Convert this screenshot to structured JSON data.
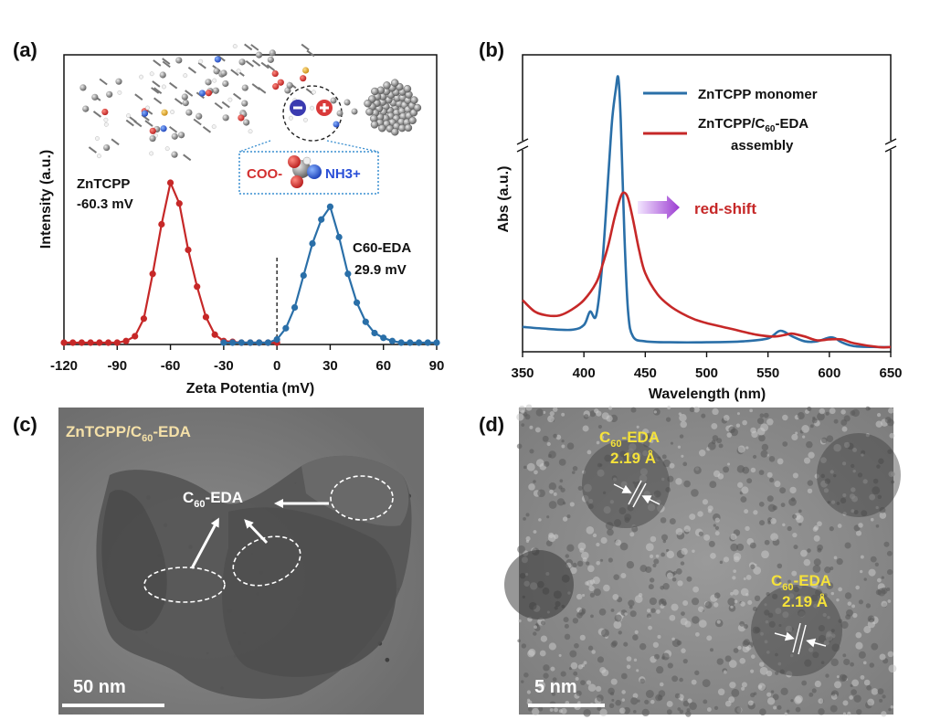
{
  "panels": {
    "a": {
      "label": "(a)"
    },
    "b": {
      "label": "(b)"
    },
    "c": {
      "label": "(c)",
      "title": "ZnTCPP/C60-EDA",
      "scalebar": "50 nm",
      "arrow_label": "C60-EDA"
    },
    "d": {
      "label": "(d)",
      "scalebar": "5 nm",
      "annotation_name": "C60-EDA",
      "annotation_value": "2.19 Å"
    }
  },
  "chart_data": [
    {
      "type": "line",
      "panel": "a",
      "xlabel": "Zeta Potentia (mV)",
      "ylabel": "Intensity (a.u.)",
      "xlim": [
        -120,
        90
      ],
      "xticks": [
        -120,
        -90,
        -60,
        -30,
        0,
        30,
        60,
        90
      ],
      "ylim": [
        0,
        1
      ],
      "dashed_reference_x": 0,
      "series": [
        {
          "name": "ZnTCPP",
          "color": "#c62828",
          "x": [
            -120,
            -115,
            -110,
            -105,
            -100,
            -95,
            -90,
            -85,
            -80,
            -75,
            -70,
            -65,
            -60,
            -55,
            -50,
            -45,
            -40,
            -35,
            -30,
            -25,
            -20,
            -15,
            -10,
            -5,
            0
          ],
          "y": [
            0,
            0,
            0,
            0,
            0,
            0,
            0,
            0.01,
            0.04,
            0.15,
            0.43,
            0.74,
            1.0,
            0.87,
            0.58,
            0.35,
            0.16,
            0.05,
            0.01,
            0.005,
            0,
            0,
            0,
            0,
            0
          ]
        },
        {
          "name": "C60-EDA",
          "color": "#2a6fa8",
          "x": [
            -30,
            -25,
            -20,
            -15,
            -10,
            -5,
            0,
            5,
            10,
            15,
            20,
            25,
            30,
            35,
            40,
            45,
            50,
            55,
            60,
            65,
            70,
            75,
            80,
            85,
            90
          ],
          "y": [
            0,
            0,
            0,
            0,
            0,
            0,
            0.02,
            0.09,
            0.22,
            0.42,
            0.62,
            0.77,
            0.85,
            0.66,
            0.43,
            0.25,
            0.13,
            0.06,
            0.03,
            0.01,
            0,
            0,
            0,
            0,
            0
          ]
        }
      ],
      "annotations": [
        {
          "line1": "ZnTCPP",
          "line2": "-60.3 mV",
          "color": "#111111"
        },
        {
          "line1": "C60-EDA",
          "line2": "29.9 mV",
          "color": "#111111"
        },
        {
          "text": "COO-",
          "color": "#d32f2f"
        },
        {
          "text": "NH3+",
          "color": "#2a4fd8"
        }
      ]
    },
    {
      "type": "line",
      "panel": "b",
      "xlabel": "Wavelength (nm)",
      "ylabel": "Abs (a.u.)",
      "xlim": [
        350,
        650
      ],
      "xticks": [
        350,
        400,
        450,
        500,
        550,
        600,
        650
      ],
      "ylim": [
        0,
        1
      ],
      "y_axis_break": true,
      "legend": "top-right",
      "series": [
        {
          "name": "ZnTCPP monomer",
          "color": "#2a6fa8",
          "x": [
            350,
            370,
            390,
            400,
            405,
            410,
            415,
            420,
            423,
            426,
            428,
            430,
            433,
            436,
            440,
            450,
            470,
            500,
            530,
            550,
            560,
            570,
            580,
            590,
            600,
            605,
            610,
            620,
            640,
            650
          ],
          "y": [
            0.12,
            0.11,
            0.105,
            0.13,
            0.2,
            0.18,
            0.45,
            0.92,
            1.2,
            1.36,
            1.42,
            1.2,
            0.6,
            0.2,
            0.07,
            0.045,
            0.04,
            0.04,
            0.045,
            0.06,
            0.1,
            0.07,
            0.045,
            0.045,
            0.065,
            0.06,
            0.04,
            0.02,
            0.015,
            0.015
          ]
        },
        {
          "name": "ZnTCPP/C60-EDA assembly",
          "color": "#c62828",
          "x": [
            350,
            360,
            370,
            380,
            390,
            400,
            410,
            415,
            420,
            425,
            430,
            433,
            436,
            440,
            445,
            450,
            460,
            470,
            480,
            490,
            500,
            520,
            540,
            555,
            565,
            570,
            580,
            590,
            600,
            610,
            620,
            640,
            650
          ],
          "y": [
            0.26,
            0.2,
            0.18,
            0.18,
            0.21,
            0.26,
            0.35,
            0.44,
            0.55,
            0.69,
            0.8,
            0.82,
            0.79,
            0.68,
            0.52,
            0.4,
            0.29,
            0.23,
            0.19,
            0.16,
            0.14,
            0.11,
            0.08,
            0.07,
            0.08,
            0.085,
            0.07,
            0.05,
            0.055,
            0.055,
            0.035,
            0.015,
            0.015
          ]
        }
      ],
      "annotations": [
        {
          "text": "red-shift",
          "color": "#c62828"
        }
      ]
    }
  ]
}
